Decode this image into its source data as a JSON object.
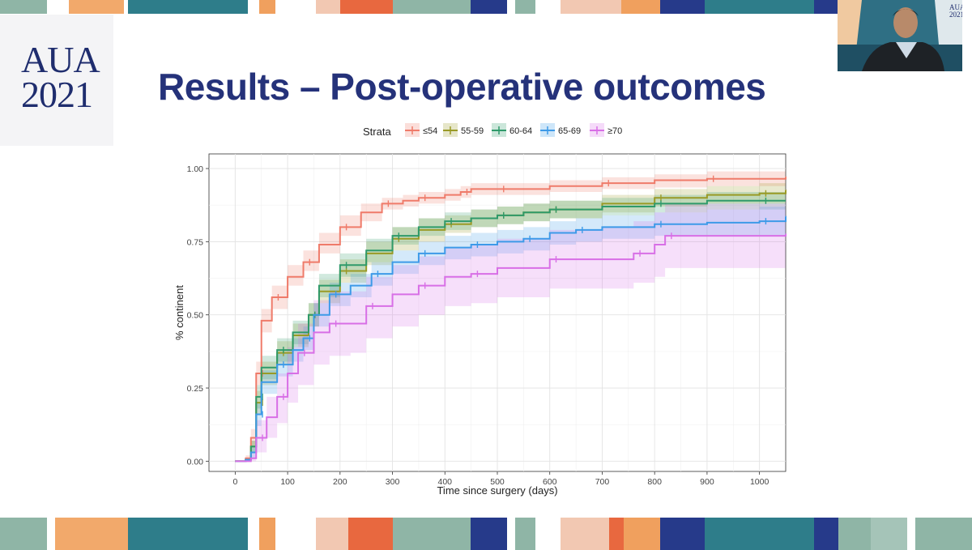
{
  "logo": {
    "line1": "AUA",
    "line2": "2021"
  },
  "slide_title": "Results – Post-operative outcomes",
  "video": {
    "mini_logo_line1": "AUA",
    "mini_logo_line2": "2021"
  },
  "colors": {
    "title": "#25327a",
    "le54": "#ef7b6a",
    "55_59": "#9a9a26",
    "60_64": "#2f9a6a",
    "65_69": "#3d9ae8",
    "ge70": "#d86fe6"
  },
  "chart_data": {
    "type": "line",
    "title": "",
    "xlabel": "Time since surgery (days)",
    "ylabel": "% continent",
    "xlim": [
      -50,
      1050
    ],
    "ylim": [
      -0.035,
      1.05
    ],
    "x_ticks": [
      0,
      100,
      200,
      300,
      400,
      500,
      600,
      700,
      800,
      900,
      1000
    ],
    "y_ticks": [
      0.0,
      0.25,
      0.5,
      0.75,
      1.0
    ],
    "y_tick_labels": [
      "0.00",
      "0.25",
      "0.50",
      "0.75",
      "1.00"
    ],
    "grid": true,
    "legend": {
      "title": "Strata",
      "position": "top"
    },
    "series": [
      {
        "name": "≤54",
        "color_key": "le54",
        "points": [
          [
            0,
            0
          ],
          [
            20,
            0.01
          ],
          [
            30,
            0.08
          ],
          [
            40,
            0.3
          ],
          [
            50,
            0.48
          ],
          [
            70,
            0.56
          ],
          [
            100,
            0.63
          ],
          [
            130,
            0.68
          ],
          [
            160,
            0.74
          ],
          [
            200,
            0.8
          ],
          [
            240,
            0.85
          ],
          [
            280,
            0.88
          ],
          [
            320,
            0.89
          ],
          [
            350,
            0.9
          ],
          [
            400,
            0.91
          ],
          [
            430,
            0.92
          ],
          [
            450,
            0.93
          ],
          [
            500,
            0.93
          ],
          [
            600,
            0.94
          ],
          [
            700,
            0.95
          ],
          [
            800,
            0.96
          ],
          [
            900,
            0.965
          ],
          [
            1050,
            0.97
          ]
        ],
        "ci_lower": [
          0,
          0,
          0.05,
          0.26,
          0.44,
          0.52,
          0.6,
          0.65,
          0.71,
          0.77,
          0.82,
          0.86,
          0.87,
          0.88,
          0.89,
          0.9,
          0.91,
          0.91,
          0.92,
          0.93,
          0.935,
          0.94,
          0.94
        ],
        "ci_upper": [
          0,
          0.02,
          0.11,
          0.34,
          0.52,
          0.6,
          0.67,
          0.72,
          0.78,
          0.84,
          0.88,
          0.9,
          0.91,
          0.92,
          0.93,
          0.94,
          0.95,
          0.95,
          0.96,
          0.97,
          0.98,
          0.99,
          1.0
        ]
      },
      {
        "name": "55-59",
        "color_key": "55_59",
        "points": [
          [
            0,
            0
          ],
          [
            20,
            0.005
          ],
          [
            30,
            0.05
          ],
          [
            40,
            0.2
          ],
          [
            50,
            0.3
          ],
          [
            80,
            0.37
          ],
          [
            110,
            0.43
          ],
          [
            140,
            0.5
          ],
          [
            160,
            0.58
          ],
          [
            200,
            0.65
          ],
          [
            250,
            0.71
          ],
          [
            300,
            0.76
          ],
          [
            350,
            0.79
          ],
          [
            400,
            0.81
          ],
          [
            450,
            0.83
          ],
          [
            500,
            0.84
          ],
          [
            550,
            0.85
          ],
          [
            600,
            0.86
          ],
          [
            700,
            0.88
          ],
          [
            800,
            0.9
          ],
          [
            900,
            0.91
          ],
          [
            1000,
            0.915
          ],
          [
            1050,
            0.925
          ]
        ],
        "ci_lower": [
          0,
          0,
          0.03,
          0.16,
          0.26,
          0.33,
          0.39,
          0.46,
          0.54,
          0.61,
          0.67,
          0.72,
          0.75,
          0.78,
          0.8,
          0.81,
          0.82,
          0.83,
          0.85,
          0.87,
          0.88,
          0.88,
          0.89
        ],
        "ci_upper": [
          0,
          0.01,
          0.07,
          0.24,
          0.34,
          0.41,
          0.47,
          0.54,
          0.62,
          0.69,
          0.75,
          0.8,
          0.83,
          0.84,
          0.86,
          0.87,
          0.88,
          0.89,
          0.91,
          0.93,
          0.94,
          0.95,
          0.96
        ]
      },
      {
        "name": "60-64",
        "color_key": "60_64",
        "points": [
          [
            0,
            0
          ],
          [
            20,
            0.005
          ],
          [
            30,
            0.05
          ],
          [
            40,
            0.22
          ],
          [
            50,
            0.32
          ],
          [
            80,
            0.38
          ],
          [
            110,
            0.44
          ],
          [
            140,
            0.5
          ],
          [
            160,
            0.6
          ],
          [
            200,
            0.67
          ],
          [
            250,
            0.72
          ],
          [
            300,
            0.77
          ],
          [
            350,
            0.8
          ],
          [
            400,
            0.82
          ],
          [
            450,
            0.83
          ],
          [
            500,
            0.84
          ],
          [
            550,
            0.85
          ],
          [
            600,
            0.86
          ],
          [
            700,
            0.87
          ],
          [
            800,
            0.88
          ],
          [
            900,
            0.89
          ],
          [
            1000,
            0.89
          ],
          [
            1050,
            0.89
          ]
        ],
        "ci_lower": [
          0,
          0,
          0.03,
          0.18,
          0.28,
          0.34,
          0.4,
          0.46,
          0.56,
          0.63,
          0.68,
          0.74,
          0.77,
          0.79,
          0.8,
          0.81,
          0.82,
          0.83,
          0.84,
          0.85,
          0.86,
          0.86,
          0.86
        ],
        "ci_upper": [
          0,
          0.01,
          0.07,
          0.26,
          0.36,
          0.42,
          0.48,
          0.54,
          0.64,
          0.71,
          0.76,
          0.8,
          0.83,
          0.85,
          0.86,
          0.87,
          0.88,
          0.89,
          0.9,
          0.91,
          0.92,
          0.92,
          0.92
        ]
      },
      {
        "name": "65-69",
        "color_key": "65_69",
        "points": [
          [
            0,
            0
          ],
          [
            20,
            0.005
          ],
          [
            30,
            0.03
          ],
          [
            40,
            0.16
          ],
          [
            50,
            0.27
          ],
          [
            80,
            0.33
          ],
          [
            110,
            0.38
          ],
          [
            130,
            0.42
          ],
          [
            150,
            0.5
          ],
          [
            180,
            0.57
          ],
          [
            220,
            0.6
          ],
          [
            260,
            0.64
          ],
          [
            300,
            0.68
          ],
          [
            350,
            0.71
          ],
          [
            400,
            0.73
          ],
          [
            450,
            0.74
          ],
          [
            500,
            0.75
          ],
          [
            550,
            0.76
          ],
          [
            600,
            0.78
          ],
          [
            650,
            0.79
          ],
          [
            700,
            0.8
          ],
          [
            800,
            0.81
          ],
          [
            900,
            0.815
          ],
          [
            1000,
            0.82
          ],
          [
            1050,
            0.835
          ]
        ],
        "ci_lower": [
          0,
          0,
          0.01,
          0.12,
          0.23,
          0.29,
          0.34,
          0.38,
          0.46,
          0.53,
          0.56,
          0.6,
          0.64,
          0.67,
          0.69,
          0.7,
          0.71,
          0.72,
          0.74,
          0.75,
          0.76,
          0.77,
          0.77,
          0.77,
          0.78
        ],
        "ci_upper": [
          0,
          0.01,
          0.05,
          0.2,
          0.31,
          0.37,
          0.42,
          0.46,
          0.54,
          0.61,
          0.64,
          0.68,
          0.72,
          0.75,
          0.77,
          0.78,
          0.79,
          0.8,
          0.82,
          0.83,
          0.84,
          0.85,
          0.86,
          0.87,
          0.89
        ]
      },
      {
        "name": "≥70",
        "color_key": "ge70",
        "points": [
          [
            0,
            0
          ],
          [
            20,
            0.0
          ],
          [
            30,
            0.01
          ],
          [
            40,
            0.08
          ],
          [
            60,
            0.15
          ],
          [
            80,
            0.22
          ],
          [
            100,
            0.3
          ],
          [
            120,
            0.37
          ],
          [
            150,
            0.44
          ],
          [
            180,
            0.47
          ],
          [
            220,
            0.47
          ],
          [
            250,
            0.53
          ],
          [
            300,
            0.57
          ],
          [
            350,
            0.6
          ],
          [
            400,
            0.63
          ],
          [
            450,
            0.64
          ],
          [
            500,
            0.66
          ],
          [
            600,
            0.69
          ],
          [
            700,
            0.69
          ],
          [
            760,
            0.71
          ],
          [
            800,
            0.74
          ],
          [
            820,
            0.77
          ],
          [
            1050,
            0.775
          ]
        ],
        "ci_lower": [
          0,
          0,
          0,
          0.03,
          0.08,
          0.13,
          0.2,
          0.26,
          0.33,
          0.36,
          0.37,
          0.42,
          0.46,
          0.5,
          0.53,
          0.54,
          0.56,
          0.59,
          0.59,
          0.61,
          0.63,
          0.66,
          0.66
        ],
        "ci_upper": [
          0,
          0.01,
          0.03,
          0.14,
          0.22,
          0.3,
          0.39,
          0.47,
          0.55,
          0.58,
          0.58,
          0.63,
          0.67,
          0.7,
          0.73,
          0.74,
          0.76,
          0.79,
          0.8,
          0.82,
          0.85,
          0.88,
          0.89
        ]
      }
    ]
  }
}
